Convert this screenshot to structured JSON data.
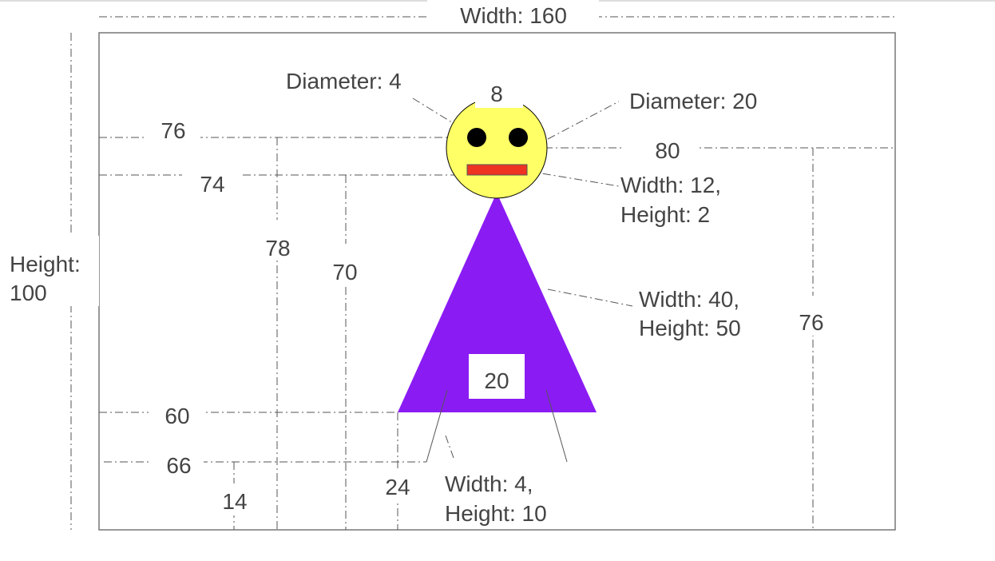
{
  "labels": {
    "width_total": "Width: 160",
    "height_total_line1": "Height:",
    "height_total_line2": "100",
    "eye_diameter": "Diameter: 4",
    "eye_spacing": "8",
    "head_diameter": "Diameter: 20",
    "eye_y": "76",
    "head_center_x": "80",
    "mouth_y": "74",
    "mouth_size_line1": "Width: 12,",
    "mouth_size_line2": "Height: 2",
    "eye_x": "78",
    "mouth_x": "70",
    "body_size_line1": "Width: 40,",
    "body_size_line2": "Height: 50",
    "right_height": "76",
    "legs_gap": "20",
    "body_bottom_y": "60",
    "legs_bottom_y": "66",
    "left_leg_x": "14",
    "body_left_x": "24",
    "leg_size_line1": "Width: 4,",
    "leg_size_line2": "Height: 10"
  },
  "colors": {
    "head": "#ffff66",
    "eye": "#000000",
    "mouth": "#ee3322",
    "body": "#8a1cf3",
    "frame": "#777777"
  }
}
